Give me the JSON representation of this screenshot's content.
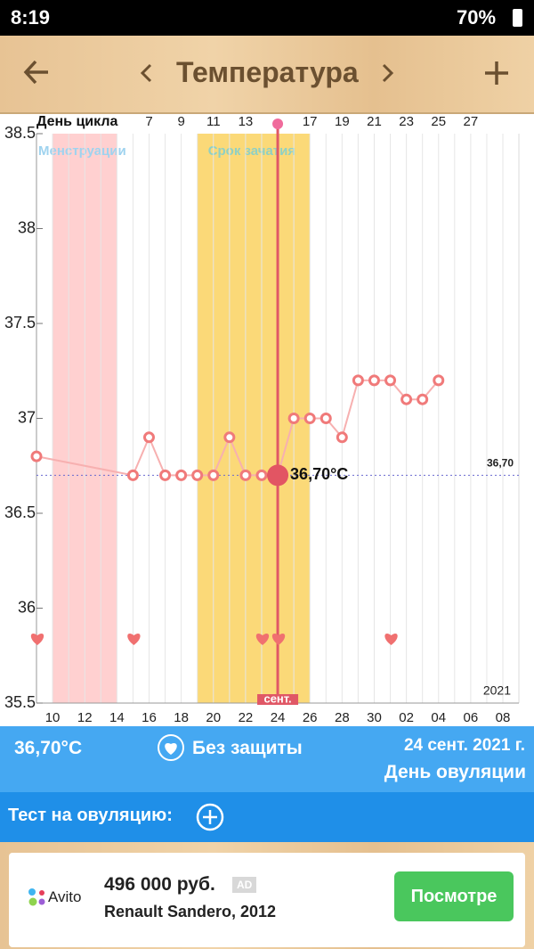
{
  "status_bar": {
    "time": "8:19",
    "battery": "70%"
  },
  "header": {
    "title": "Температура"
  },
  "chart_data": {
    "type": "line",
    "top_title": "День цикла",
    "top_categories": [
      null,
      null,
      null,
      null,
      null,
      null,
      null,
      "7",
      null,
      "9",
      null,
      "11",
      null,
      "13",
      null,
      null,
      null,
      "17",
      null,
      "19",
      null,
      "21",
      null,
      "23",
      null,
      "25",
      null,
      "27",
      null,
      null,
      null
    ],
    "categories": [
      null,
      "10",
      null,
      "12",
      null,
      "14",
      null,
      "16",
      null,
      "18",
      null,
      "20",
      null,
      "22",
      null,
      "24",
      null,
      "26",
      null,
      "28",
      null,
      "30",
      null,
      "02",
      null,
      "04",
      null,
      "06",
      null,
      "08",
      null
    ],
    "values": [
      36.8,
      null,
      null,
      null,
      null,
      null,
      36.7,
      36.9,
      36.7,
      36.7,
      36.7,
      36.7,
      36.9,
      36.7,
      36.7,
      36.7,
      37.0,
      37.0,
      37.0,
      36.9,
      37.2,
      37.2,
      37.2,
      37.1,
      37.1,
      37.2,
      null,
      null,
      null,
      null,
      null
    ],
    "value_labels": [
      null,
      null,
      null,
      null,
      null,
      null,
      null,
      null,
      null,
      null,
      null,
      null,
      null,
      null,
      null,
      "36,70°C",
      null,
      null,
      null,
      null,
      null,
      null,
      null,
      null,
      null,
      null,
      null,
      null,
      null,
      null,
      null
    ],
    "color": "#f07a7a",
    "selected_day": "24",
    "month_label": "сент.",
    "year_label": "2021",
    "menstruation": {
      "label": "Менструации",
      "color": "#ffd0d0",
      "days": [
        false,
        true,
        true,
        true,
        true,
        false,
        false,
        false,
        false,
        false,
        false,
        false,
        false,
        false,
        false,
        false,
        false,
        false,
        false,
        false,
        false,
        false,
        false,
        false,
        false,
        false,
        false,
        false,
        false,
        false,
        false
      ]
    },
    "fertile": {
      "label": "Срок зачатия",
      "color": "#fbd978",
      "days": [
        false,
        false,
        false,
        false,
        false,
        false,
        false,
        false,
        false,
        false,
        true,
        true,
        true,
        true,
        true,
        true,
        true,
        false,
        false,
        false,
        false,
        false,
        false,
        false,
        false,
        false,
        false,
        false,
        false,
        false,
        false
      ]
    },
    "hearts": [
      true,
      false,
      false,
      false,
      false,
      false,
      true,
      false,
      false,
      false,
      false,
      false,
      false,
      false,
      true,
      true,
      false,
      false,
      false,
      false,
      false,
      false,
      true,
      false,
      false,
      false,
      false,
      false,
      false,
      false,
      false
    ],
    "cover_line": {
      "value": 36.7,
      "label": "36,70"
    },
    "ylim": [
      35.5,
      38.5
    ],
    "yticks": [
      35.5,
      36,
      36.5,
      37,
      37.5,
      38,
      38.5
    ],
    "grid": true
  },
  "info": {
    "temperature": "36,70°C",
    "protection": "Без защиты",
    "date": "24 сент. 2021 г.",
    "day_type": "День овуляции"
  },
  "test": {
    "label": "Тест на овуляцию:"
  },
  "ad": {
    "brand": "Avito",
    "price": "496 000 руб.",
    "badge": "AD",
    "model": "Renault Sandero, 2012",
    "button": "Посмотре"
  }
}
